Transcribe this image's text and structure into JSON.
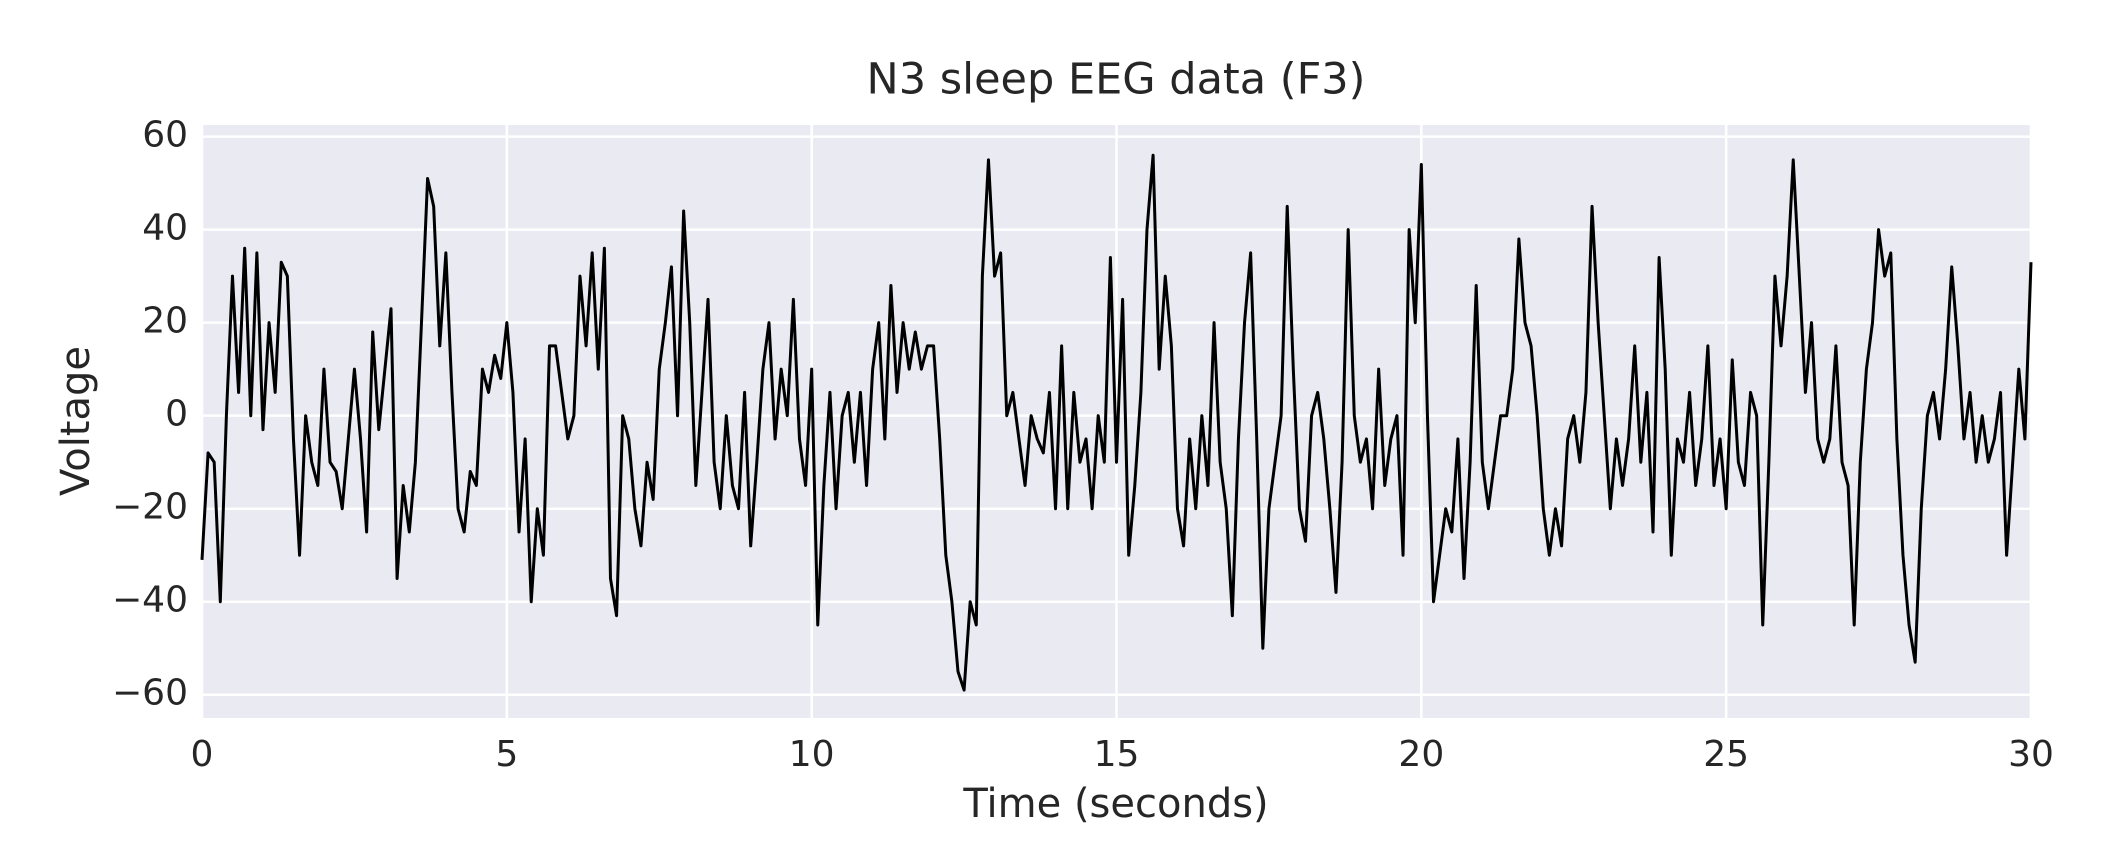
{
  "chart_data": {
    "type": "line",
    "title": "N3 sleep EEG data (F3)",
    "x_label": "Time (seconds)",
    "y_label": "Voltage",
    "x": [
      0,
      0.1,
      0.2,
      0.3,
      0.4,
      0.5,
      0.6,
      0.7,
      0.8,
      0.9,
      1,
      1.1,
      1.2,
      1.3,
      1.4,
      1.5,
      1.6,
      1.7,
      1.8,
      1.9,
      2,
      2.1,
      2.2,
      2.3,
      2.4,
      2.5,
      2.6,
      2.7,
      2.8,
      2.9,
      3,
      3.1,
      3.2,
      3.3,
      3.4,
      3.5,
      3.6,
      3.7,
      3.8,
      3.9,
      4,
      4.1,
      4.2,
      4.3,
      4.4,
      4.5,
      4.6,
      4.7,
      4.8,
      4.9,
      5,
      5.1,
      5.2,
      5.3,
      5.4,
      5.5,
      5.6,
      5.7,
      5.8,
      5.9,
      6,
      6.1,
      6.2,
      6.3,
      6.4,
      6.5,
      6.6,
      6.7,
      6.8,
      6.9,
      7,
      7.1,
      7.2,
      7.3,
      7.4,
      7.5,
      7.6,
      7.7,
      7.8,
      7.9,
      8,
      8.1,
      8.2,
      8.3,
      8.4,
      8.5,
      8.6,
      8.7,
      8.8,
      8.9,
      9,
      9.1,
      9.2,
      9.3,
      9.4,
      9.5,
      9.6,
      9.7,
      9.8,
      9.9,
      10,
      10.1,
      10.2,
      10.3,
      10.4,
      10.5,
      10.6,
      10.7,
      10.8,
      10.9,
      11,
      11.1,
      11.2,
      11.3,
      11.4,
      11.5,
      11.6,
      11.7,
      11.8,
      11.9,
      12,
      12.1,
      12.2,
      12.3,
      12.4,
      12.5,
      12.6,
      12.7,
      12.8,
      12.9,
      13,
      13.1,
      13.2,
      13.3,
      13.4,
      13.5,
      13.6,
      13.7,
      13.8,
      13.9,
      14,
      14.1,
      14.2,
      14.3,
      14.4,
      14.5,
      14.6,
      14.7,
      14.8,
      14.9,
      15,
      15.1,
      15.2,
      15.3,
      15.4,
      15.5,
      15.6,
      15.7,
      15.8,
      15.9,
      16,
      16.1,
      16.2,
      16.3,
      16.4,
      16.5,
      16.6,
      16.7,
      16.8,
      16.9,
      17,
      17.1,
      17.2,
      17.3,
      17.4,
      17.5,
      17.6,
      17.7,
      17.8,
      17.9,
      18,
      18.1,
      18.2,
      18.3,
      18.4,
      18.5,
      18.6,
      18.7,
      18.8,
      18.9,
      19,
      19.1,
      19.2,
      19.3,
      19.4,
      19.5,
      19.6,
      19.7,
      19.8,
      19.9,
      20,
      20.1,
      20.2,
      20.3,
      20.4,
      20.5,
      20.6,
      20.7,
      20.8,
      20.9,
      21,
      21.1,
      21.2,
      21.3,
      21.4,
      21.5,
      21.6,
      21.7,
      21.8,
      21.9,
      22,
      22.1,
      22.2,
      22.3,
      22.4,
      22.5,
      22.6,
      22.7,
      22.8,
      22.9,
      23,
      23.1,
      23.2,
      23.3,
      23.4,
      23.5,
      23.6,
      23.7,
      23.8,
      23.9,
      24,
      24.1,
      24.2,
      24.3,
      24.4,
      24.5,
      24.6,
      24.7,
      24.8,
      24.9,
      25,
      25.1,
      25.2,
      25.3,
      25.4,
      25.5,
      25.6,
      25.7,
      25.8,
      25.9,
      26,
      26.1,
      26.2,
      26.3,
      26.4,
      26.5,
      26.6,
      26.7,
      26.8,
      26.9,
      27,
      27.1,
      27.2,
      27.3,
      27.4,
      27.5,
      27.6,
      27.7,
      27.8,
      27.9,
      28,
      28.1,
      28.2,
      28.3,
      28.4,
      28.5,
      28.6,
      28.7,
      28.8,
      28.9,
      29,
      29.1,
      29.2,
      29.3,
      29.4,
      29.5,
      29.6,
      29.7,
      29.8,
      29.9,
      30
    ],
    "values": [
      -31,
      -8,
      -10,
      -40,
      0,
      30,
      5,
      36,
      0,
      35,
      -3,
      20,
      5,
      33,
      30,
      -5,
      -30,
      0,
      -10,
      -15,
      10,
      -10,
      -12,
      -20,
      -5,
      10,
      -5,
      -25,
      18,
      -3,
      10,
      23,
      -35,
      -15,
      -25,
      -10,
      20,
      51,
      45,
      15,
      35,
      5,
      -20,
      -25,
      -12,
      -15,
      10,
      5,
      13,
      8,
      20,
      5,
      -25,
      -5,
      -40,
      -20,
      -30,
      15,
      15,
      5,
      -5,
      0,
      30,
      15,
      35,
      10,
      36,
      -35,
      -43,
      0,
      -5,
      -20,
      -28,
      -10,
      -18,
      10,
      20,
      32,
      0,
      44,
      20,
      -15,
      5,
      25,
      -10,
      -20,
      0,
      -15,
      -20,
      5,
      -28,
      -10,
      10,
      20,
      -5,
      10,
      0,
      25,
      -5,
      -15,
      10,
      -45,
      -15,
      5,
      -20,
      0,
      5,
      -10,
      5,
      -15,
      10,
      20,
      -5,
      28,
      5,
      20,
      10,
      18,
      10,
      15,
      15,
      -5,
      -30,
      -40,
      -55,
      -59,
      -40,
      -45,
      30,
      55,
      30,
      35,
      0,
      5,
      -5,
      -15,
      0,
      -5,
      -8,
      5,
      -20,
      15,
      -20,
      5,
      -10,
      -5,
      -20,
      0,
      -10,
      34,
      -10,
      25,
      -30,
      -15,
      5,
      40,
      56,
      10,
      30,
      15,
      -20,
      -28,
      -5,
      -20,
      0,
      -15,
      20,
      -10,
      -20,
      -43,
      -5,
      20,
      35,
      -5,
      -50,
      -20,
      -10,
      0,
      45,
      10,
      -20,
      -27,
      0,
      5,
      -5,
      -20,
      -38,
      -10,
      40,
      0,
      -10,
      -5,
      -20,
      10,
      -15,
      -5,
      0,
      -30,
      40,
      20,
      54,
      0,
      -40,
      -30,
      -20,
      -25,
      -5,
      -35,
      -10,
      28,
      -10,
      -20,
      -10,
      0,
      0,
      10,
      38,
      20,
      15,
      0,
      -20,
      -30,
      -20,
      -28,
      -5,
      0,
      -10,
      5,
      45,
      20,
      0,
      -20,
      -5,
      -15,
      -5,
      15,
      -10,
      5,
      -25,
      34,
      10,
      -30,
      -5,
      -10,
      5,
      -15,
      -5,
      15,
      -15,
      -5,
      -20,
      12,
      -10,
      -15,
      5,
      0,
      -45,
      -10,
      30,
      15,
      30,
      55,
      30,
      5,
      20,
      -5,
      -10,
      -5,
      15,
      -10,
      -15,
      -45,
      -10,
      10,
      20,
      40,
      30,
      35,
      -5,
      -30,
      -45,
      -53,
      -20,
      0,
      5,
      -5,
      10,
      32,
      15,
      -5,
      5,
      -10,
      0,
      -10,
      -5,
      5,
      -30,
      -10,
      10,
      -5,
      33
    ],
    "color": "#000000",
    "xlim": [
      0,
      30
    ],
    "ylim": [
      -65,
      62.5
    ],
    "xticks": [
      0,
      5,
      10,
      15,
      20,
      25,
      30
    ],
    "yticks": [
      {
        "value": -60,
        "label": "−60"
      },
      {
        "value": -40,
        "label": "−40"
      },
      {
        "value": -20,
        "label": "−20"
      },
      0,
      20,
      40,
      60
    ],
    "grid": true
  }
}
